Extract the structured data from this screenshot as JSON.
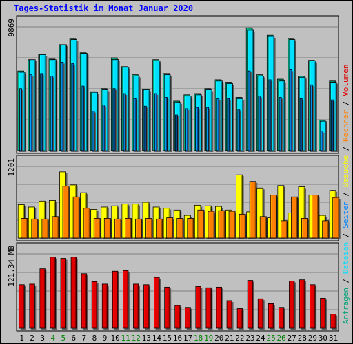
{
  "chart_data": {
    "type": "bar",
    "title": "Tages-Statistik im Monat Januar 2020",
    "days": [
      1,
      2,
      3,
      4,
      5,
      6,
      7,
      8,
      9,
      10,
      11,
      12,
      13,
      14,
      15,
      16,
      17,
      18,
      19,
      20,
      21,
      22,
      23,
      24,
      25,
      26,
      27,
      28,
      29,
      30,
      31
    ],
    "weekend_days": [
      4,
      5,
      11,
      12,
      18,
      19,
      25,
      26
    ],
    "colors": {
      "anfragen": "#00a27a",
      "dateien": "#00e0ff",
      "seiten": "#0080ff",
      "besuche": "#ffff00",
      "rechner": "#ff8000",
      "volumen": "#e00000",
      "weekend_label": "#008000",
      "weekday_label": "#000000",
      "title": "#0000ff"
    },
    "panels": [
      {
        "id": "hits",
        "scale_label": "9869",
        "max": 9869,
        "series": [
          {
            "name": "Anfragen",
            "color_key": "anfragen",
            "values": [
              6350,
              7250,
              7700,
              7300,
              8450,
              8950,
              7800,
              4700,
              4950,
              7400,
              6700,
              6050,
              4900,
              7250,
              6150,
              3950,
              4450,
              4550,
              4950,
              5650,
              5450,
              4250,
              9800,
              6050,
              9200,
              5700,
              8950,
              5950,
              7200,
              2450,
              5550
            ]
          },
          {
            "name": "Dateien",
            "color_key": "dateien",
            "values": [
              6250,
              7250,
              7650,
              7250,
              8450,
              8850,
              7750,
              4650,
              4850,
              7250,
              6650,
              5950,
              4850,
              7150,
              6050,
              3850,
              4350,
              4450,
              4850,
              5550,
              5350,
              4150,
              9600,
              5950,
              9100,
              5550,
              8850,
              5850,
              7150,
              2350,
              5450
            ]
          },
          {
            "name": "Seiten",
            "color_key": "seiten",
            "values": [
              4950,
              6050,
              6150,
              5950,
              7050,
              6950,
              5150,
              3150,
              3650,
              4950,
              4550,
              4150,
              3550,
              4550,
              4250,
              2850,
              3350,
              3450,
              3450,
              4150,
              4150,
              3250,
              6350,
              4350,
              5650,
              4250,
              6450,
              4150,
              5250,
              1550,
              4050
            ]
          }
        ]
      },
      {
        "id": "visits",
        "scale_label": "1201",
        "max": 1201,
        "series": [
          {
            "name": "Besuche",
            "color_key": "besuche",
            "values": [
              560,
              520,
              620,
              630,
              1110,
              890,
              760,
              480,
              520,
              540,
              570,
              570,
              600,
              520,
              500,
              470,
              380,
              550,
              540,
              530,
              470,
              1060,
              440,
              840,
              340,
              880,
              420,
              860,
              720,
              380,
              800
            ]
          },
          {
            "name": "Rechner",
            "color_key": "rechner",
            "values": [
              330,
              320,
              320,
              360,
              870,
              690,
              500,
              330,
              330,
              320,
              330,
              320,
              330,
              320,
              340,
              330,
              330,
              470,
              450,
              460,
              450,
              400,
              950,
              360,
              720,
              290,
              690,
              330,
              720,
              290,
              680
            ]
          }
        ]
      },
      {
        "id": "volume",
        "scale_label": "121.34 MB",
        "max": 121.34,
        "series": [
          {
            "name": "Volumen",
            "color_key": "volumen",
            "values": [
              71,
              72,
              97,
              116,
              114,
              116,
              89,
              76,
              72,
              93,
              94,
              72,
              71,
              83,
              67,
              37,
              34,
              68,
              66,
              67,
              45,
              32,
              78,
              48,
              40,
              34,
              77,
              79,
              71,
              49,
              23
            ]
          }
        ]
      }
    ],
    "right_legend": [
      {
        "text": "Anfragen",
        "color_key": "anfragen"
      },
      {
        "text": " / ",
        "color_key": "weekday_label"
      },
      {
        "text": "Dateien",
        "color_key": "dateien"
      },
      {
        "text": " / ",
        "color_key": "weekday_label"
      },
      {
        "text": "Seiten",
        "color_key": "seiten"
      },
      {
        "text": " / ",
        "color_key": "weekday_label"
      },
      {
        "text": "Besuche",
        "color_key": "besuche"
      },
      {
        "text": " / ",
        "color_key": "weekday_label"
      },
      {
        "text": "Rechner",
        "color_key": "rechner"
      },
      {
        "text": " / ",
        "color_key": "weekday_label"
      },
      {
        "text": "Volumen",
        "color_key": "volumen"
      }
    ]
  }
}
